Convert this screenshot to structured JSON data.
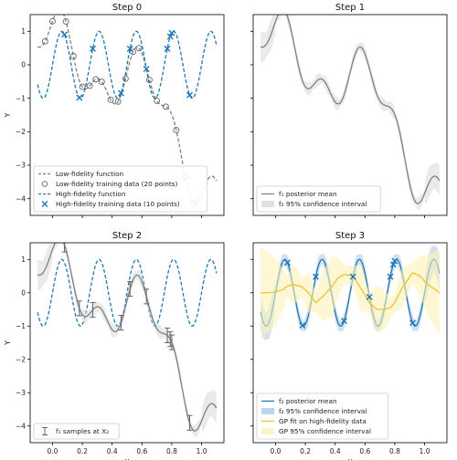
{
  "colors": {
    "low_fidelity": "#7f7f7f",
    "high_fidelity": "#1f77b4",
    "f1_mean": "#808080",
    "f2_mean": "#1f77b4",
    "gp_fit": "#f2c12e",
    "band_grey": "#d9d9d9",
    "band_blue": "#a9cbe8",
    "band_yellow": "#fbf1b8"
  },
  "chart_data": [
    {
      "type": "line",
      "title": "Step 0",
      "xlabel": "",
      "ylabel": "Y",
      "xlim": [
        -0.15,
        1.15
      ],
      "ylim": [
        -4.5,
        1.5
      ],
      "xticks": [
        0.0,
        0.2,
        0.4,
        0.6,
        0.8,
        1.0
      ],
      "yticks": [
        -4,
        -3,
        -2,
        -1,
        0,
        1
      ],
      "tick_labels_x": [
        "",
        "",
        "",
        "",
        "",
        ""
      ],
      "tick_labels_y": [
        "−4",
        "−3",
        "−2",
        "−1",
        "0",
        "1"
      ],
      "legend_location": "lower left",
      "series": [
        {
          "name": "Low-fidelity function",
          "kind": "function",
          "function": "low",
          "style": "dashed",
          "color": "#7f7f7f"
        },
        {
          "name": "Low-fidelity training data (20 points)",
          "kind": "markers",
          "marker": "circle",
          "function": "low",
          "x": [
            -0.05,
            0.0,
            0.05,
            0.09,
            0.14,
            0.2,
            0.25,
            0.29,
            0.33,
            0.39,
            0.44,
            0.49,
            0.54,
            0.58,
            0.65,
            0.7,
            0.76,
            0.83,
            0.89,
            0.95
          ]
        },
        {
          "name": "High-fidelity function",
          "kind": "function",
          "function": "high",
          "style": "dashed",
          "color": "#1f77b4"
        },
        {
          "name": "High-fidelity training data (10 points)",
          "kind": "markers",
          "marker": "x",
          "function": "high",
          "x": [
            0.08,
            0.18,
            0.27,
            0.46,
            0.52,
            0.63,
            0.77,
            0.79,
            0.8,
            0.92
          ]
        }
      ]
    },
    {
      "type": "line",
      "title": "Step 1",
      "xlabel": "",
      "ylabel": "",
      "xlim": [
        -0.15,
        1.15
      ],
      "ylim": [
        -4.5,
        1.5
      ],
      "xticks": [
        0.0,
        0.2,
        0.4,
        0.6,
        0.8,
        1.0
      ],
      "yticks": [
        -4,
        -3,
        -2,
        -1,
        0,
        1
      ],
      "tick_labels_x": [
        "",
        "",
        "",
        "",
        "",
        ""
      ],
      "tick_labels_y": [
        "",
        "",
        "",
        "",
        "",
        ""
      ],
      "legend_location": "lower left",
      "series": [
        {
          "name": "f₁ posterior mean",
          "kind": "function",
          "function": "low",
          "style": "solid",
          "color": "#808080",
          "band": 0.2
        },
        {
          "name": "f₂ 95% confidence interval",
          "kind": "band_legend"
        }
      ]
    },
    {
      "type": "line",
      "title": "Step 2",
      "xlabel": "X",
      "ylabel": "Y",
      "xlim": [
        -0.15,
        1.15
      ],
      "ylim": [
        -4.5,
        1.5
      ],
      "xticks": [
        0.0,
        0.2,
        0.4,
        0.6,
        0.8,
        1.0
      ],
      "yticks": [
        -4,
        -3,
        -2,
        -1,
        0,
        1
      ],
      "tick_labels_x": [
        "0.0",
        "0.2",
        "0.4",
        "0.6",
        "0.8",
        "1.0"
      ],
      "tick_labels_y": [
        "−4",
        "−3",
        "−2",
        "−1",
        "0",
        "1"
      ],
      "legend_location": "lower left",
      "series": [
        {
          "name": "",
          "kind": "function",
          "function": "high",
          "style": "dashed",
          "color": "#1f77b4"
        },
        {
          "name": "",
          "kind": "function",
          "function": "low",
          "style": "solid",
          "color": "#808080",
          "band": 0.2
        },
        {
          "name": "f₁ samples at X₂",
          "kind": "errorbars",
          "function": "low",
          "x": [
            0.08,
            0.18,
            0.27,
            0.46,
            0.52,
            0.63,
            0.77,
            0.79,
            0.8,
            0.92
          ],
          "err": 0.22
        }
      ]
    },
    {
      "type": "line",
      "title": "Step 3",
      "xlabel": "X",
      "ylabel": "",
      "xlim": [
        -0.15,
        1.15
      ],
      "ylim": [
        -4.5,
        1.5
      ],
      "xticks": [
        0.0,
        0.2,
        0.4,
        0.6,
        0.8,
        1.0
      ],
      "yticks": [
        -4,
        -3,
        -2,
        -1,
        0,
        1
      ],
      "tick_labels_x": [
        "0.0",
        "0.2",
        "0.4",
        "0.6",
        "0.8",
        "1.0"
      ],
      "tick_labels_y": [
        "",
        "",
        "",
        "",
        "",
        ""
      ],
      "legend_location": "lower left",
      "series": [
        {
          "name": "f₂ posterior mean",
          "kind": "function",
          "function": "high",
          "style": "solid",
          "color": "#1f77b4",
          "band": 0.25
        },
        {
          "name": "f₂ 95% confidence interval",
          "kind": "band_legend"
        },
        {
          "name": "GP fit on high-fidelity data",
          "kind": "gp",
          "color": "#f2c12e",
          "x": [
            -0.1,
            -0.05,
            0.0,
            0.05,
            0.08,
            0.12,
            0.18,
            0.22,
            0.27,
            0.32,
            0.38,
            0.42,
            0.46,
            0.52,
            0.57,
            0.63,
            0.68,
            0.73,
            0.77,
            0.8,
            0.85,
            0.92,
            0.97,
            1.02,
            1.07,
            1.1
          ],
          "y": [
            0.0,
            0.0,
            0.02,
            0.1,
            0.2,
            0.25,
            0.17,
            0.0,
            -0.3,
            -0.1,
            0.2,
            0.45,
            0.55,
            0.5,
            0.15,
            -0.3,
            -0.5,
            -0.5,
            -0.45,
            -0.3,
            0.15,
            0.6,
            0.5,
            0.25,
            0.1,
            0.0
          ],
          "band_halfwidth": [
            1.35,
            1.2,
            1.0,
            0.6,
            0.3,
            0.6,
            0.3,
            0.6,
            0.3,
            0.75,
            0.9,
            0.6,
            0.3,
            0.3,
            0.7,
            0.3,
            0.7,
            0.6,
            0.3,
            0.3,
            0.6,
            0.3,
            0.6,
            0.9,
            1.15,
            1.3
          ]
        },
        {
          "name": "GP 95% confidence interval",
          "kind": "band_legend"
        },
        {
          "name": "",
          "kind": "markers",
          "marker": "x",
          "function": "high",
          "x": [
            0.08,
            0.18,
            0.27,
            0.46,
            0.52,
            0.63,
            0.77,
            0.79,
            0.8,
            0.92
          ]
        }
      ]
    }
  ]
}
